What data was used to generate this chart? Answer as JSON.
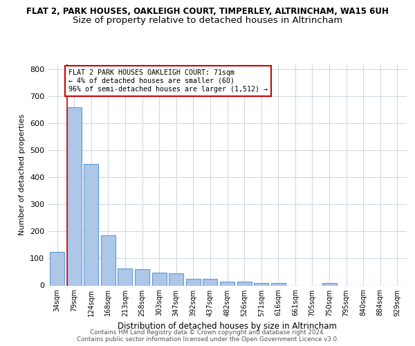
{
  "title": "FLAT 2, PARK HOUSES, OAKLEIGH COURT, TIMPERLEY, ALTRINCHAM, WA15 6UH",
  "subtitle": "Size of property relative to detached houses in Altrincham",
  "xlabel": "Distribution of detached houses by size in Altrincham",
  "ylabel": "Number of detached properties",
  "categories": [
    "34sqm",
    "79sqm",
    "124sqm",
    "168sqm",
    "213sqm",
    "258sqm",
    "303sqm",
    "347sqm",
    "392sqm",
    "437sqm",
    "482sqm",
    "526sqm",
    "571sqm",
    "616sqm",
    "661sqm",
    "705sqm",
    "750sqm",
    "795sqm",
    "840sqm",
    "884sqm",
    "929sqm"
  ],
  "values": [
    125,
    660,
    450,
    185,
    62,
    60,
    47,
    45,
    25,
    25,
    15,
    15,
    10,
    8,
    0,
    0,
    8,
    0,
    0,
    0,
    0
  ],
  "bar_color": "#aec6e8",
  "bar_edge_color": "#5b9bd5",
  "marker_color": "#cc0000",
  "annotation_text": "FLAT 2 PARK HOUSES OAKLEIGH COURT: 71sqm\n← 4% of detached houses are smaller (60)\n96% of semi-detached houses are larger (1,512) →",
  "annotation_box_color": "#ffffff",
  "annotation_border_color": "#cc0000",
  "ylim": [
    0,
    820
  ],
  "yticks": [
    0,
    100,
    200,
    300,
    400,
    500,
    600,
    700,
    800
  ],
  "footer1": "Contains HM Land Registry data © Crown copyright and database right 2024.",
  "footer2": "Contains public sector information licensed under the Open Government Licence v3.0.",
  "bg_color": "#ffffff",
  "grid_color": "#d0d8e8",
  "title_fontsize": 8.5,
  "subtitle_fontsize": 9.5
}
